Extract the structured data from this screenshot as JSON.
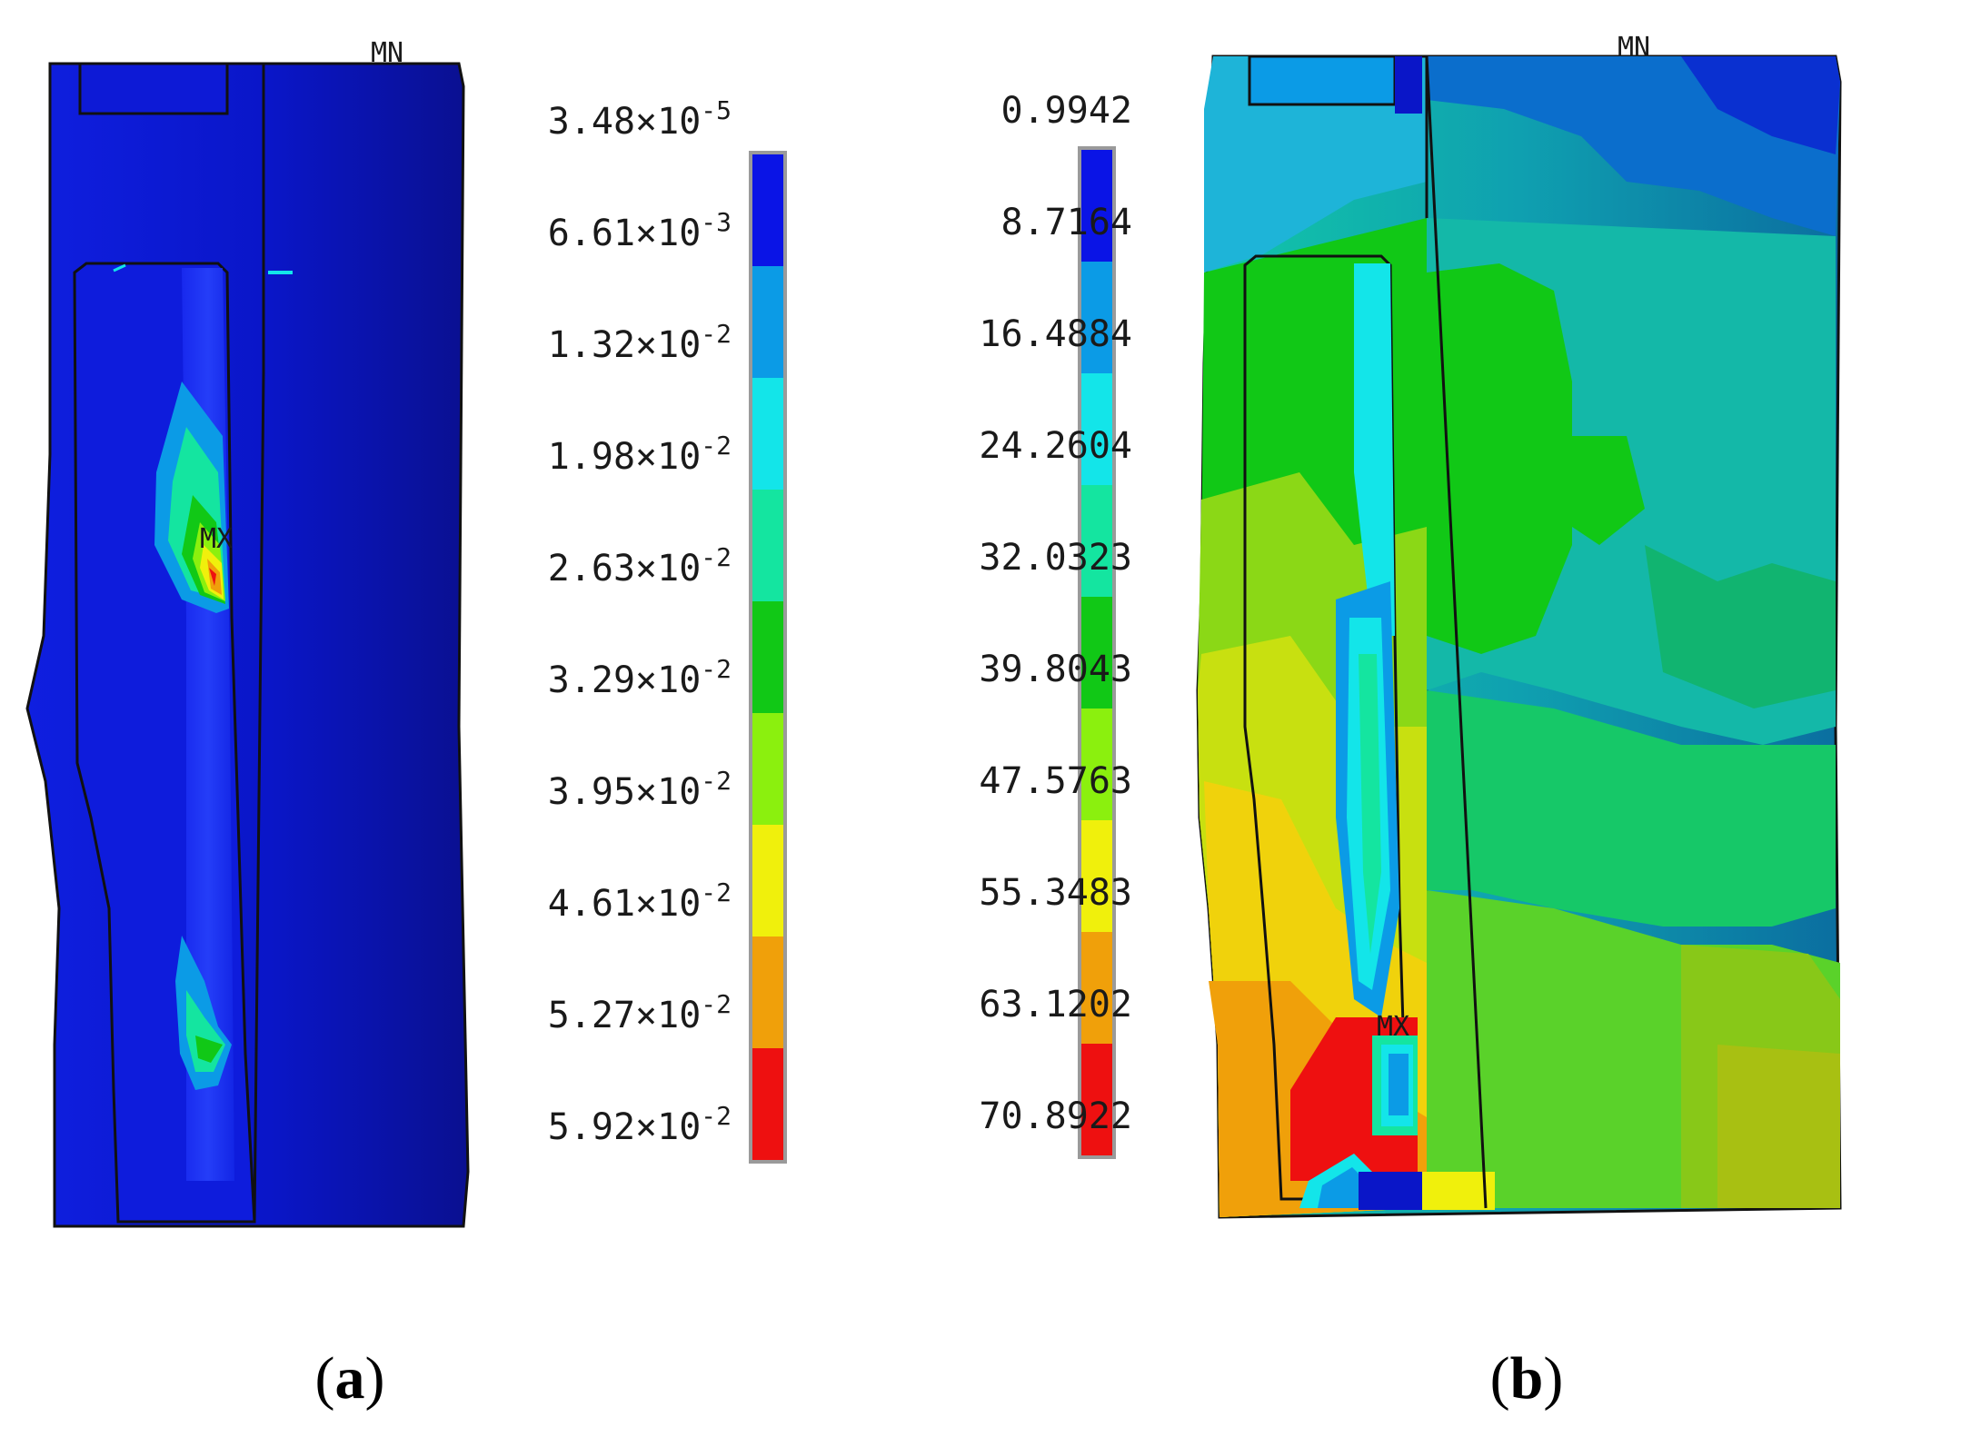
{
  "panels": [
    {
      "caption_letter": "a",
      "markers": {
        "min": "MN",
        "max": "MX"
      },
      "legend": {
        "labels": [
          {
            "mant": "3.48",
            "exp": "-5"
          },
          {
            "mant": "6.61",
            "exp": "-3"
          },
          {
            "mant": "1.32",
            "exp": "-2"
          },
          {
            "mant": "1.98",
            "exp": "-2"
          },
          {
            "mant": "2.63",
            "exp": "-2"
          },
          {
            "mant": "3.29",
            "exp": "-2"
          },
          {
            "mant": "3.95",
            "exp": "-2"
          },
          {
            "mant": "4.61",
            "exp": "-2"
          },
          {
            "mant": "5.27",
            "exp": "-2"
          },
          {
            "mant": "5.92",
            "exp": "-2"
          }
        ]
      }
    },
    {
      "caption_letter": "b",
      "markers": {
        "min": "MN",
        "max": "MX"
      },
      "legend": {
        "labels": [
          "0.9942",
          "8.7164",
          "16.4884",
          "24.2604",
          "32.0323",
          "39.8043",
          "47.5763",
          "55.3483",
          "63.1202",
          "70.8922"
        ]
      }
    }
  ],
  "colors": {
    "scale": [
      "#0a14e6",
      "#0b9be6",
      "#13e5e9",
      "#14e5a0",
      "#11c816",
      "#8bf00e",
      "#f0f00c",
      "#f0a00a",
      "#ee1010"
    ],
    "outline": "#111111"
  },
  "caption_parens": {
    "open": "(",
    "close": ")"
  }
}
